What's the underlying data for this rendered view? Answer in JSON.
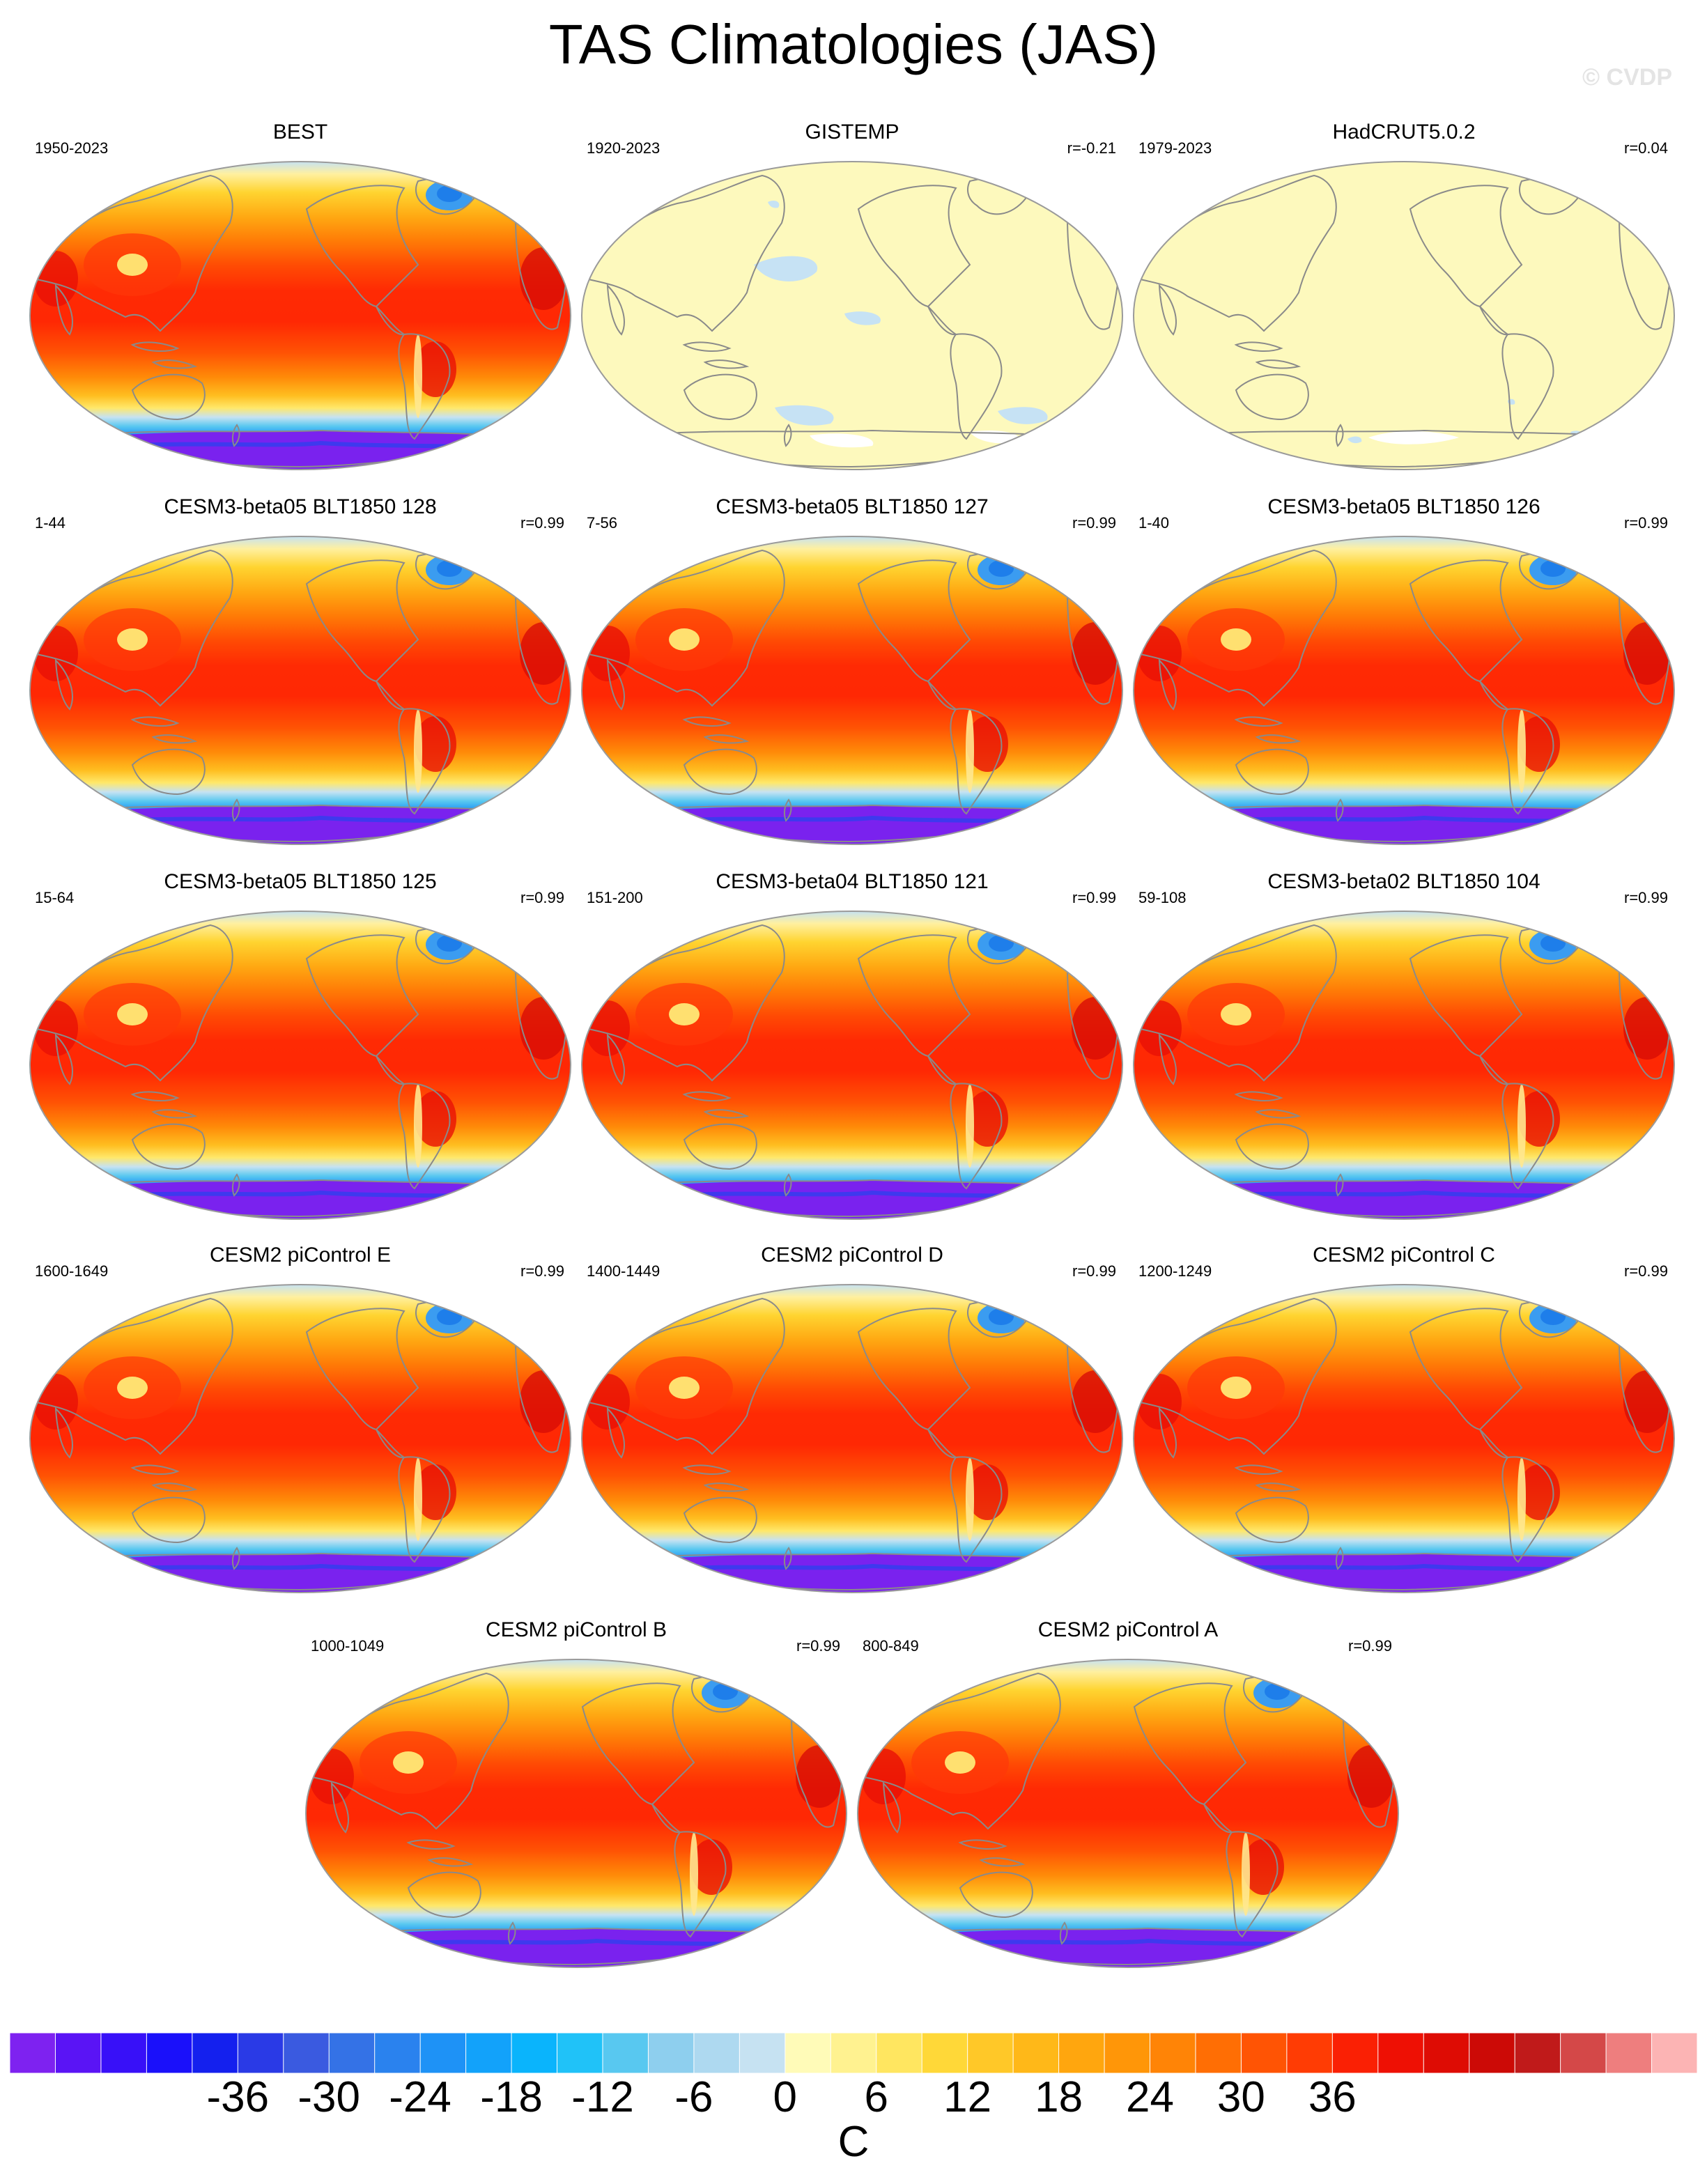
{
  "title": "TAS Climatologies (JAS)",
  "watermark": "© CVDP",
  "panels": [
    {
      "title": "BEST",
      "years": "1950-2023",
      "corr": "",
      "style": "full"
    },
    {
      "title": "GISTEMP",
      "years": "1920-2023",
      "corr": "r=-0.21",
      "style": "pale"
    },
    {
      "title": "HadCRUT5.0.2",
      "years": "1979-2023",
      "corr": "r=0.04",
      "style": "pale"
    },
    {
      "title": "CESM3-beta05 BLT1850 128",
      "years": "1-44",
      "corr": "r=0.99",
      "style": "full"
    },
    {
      "title": "CESM3-beta05 BLT1850 127",
      "years": "7-56",
      "corr": "r=0.99",
      "style": "full"
    },
    {
      "title": "CESM3-beta05 BLT1850 126",
      "years": "1-40",
      "corr": "r=0.99",
      "style": "full"
    },
    {
      "title": "CESM3-beta05 BLT1850 125",
      "years": "15-64",
      "corr": "r=0.99",
      "style": "full"
    },
    {
      "title": "CESM3-beta04 BLT1850 121",
      "years": "151-200",
      "corr": "r=0.99",
      "style": "full"
    },
    {
      "title": "CESM3-beta02 BLT1850 104",
      "years": "59-108",
      "corr": "r=0.99",
      "style": "full"
    },
    {
      "title": "CESM2 piControl E",
      "years": "1600-1649",
      "corr": "r=0.99",
      "style": "full"
    },
    {
      "title": "CESM2 piControl D",
      "years": "1400-1449",
      "corr": "r=0.99",
      "style": "full"
    },
    {
      "title": "CESM2 piControl C",
      "years": "1200-1249",
      "corr": "r=0.99",
      "style": "full"
    },
    {
      "title": "CESM2 piControl B",
      "years": "1000-1049",
      "corr": "r=0.99",
      "style": "full"
    },
    {
      "title": "CESM2 piControl A",
      "years": "800-849",
      "corr": "r=0.99",
      "style": "full"
    }
  ],
  "colorbar": {
    "units": "C",
    "labels": [
      "-36",
      "-30",
      "-24",
      "-18",
      "-12",
      "-6",
      "0",
      "6",
      "12",
      "18",
      "24",
      "30",
      "36"
    ],
    "colors": [
      "#7e22f0",
      "#5a14f5",
      "#3810f8",
      "#1a10fa",
      "#1420ee",
      "#2a3ae6",
      "#3a5ae0",
      "#3472e6",
      "#2a82ee",
      "#1e92f6",
      "#12a2fa",
      "#0ab4fc",
      "#20c2f8",
      "#58c8f0",
      "#8ecfee",
      "#aed9f0",
      "#c6e2f2",
      "#fffbb8",
      "#fff290",
      "#ffe660",
      "#ffd838",
      "#ffc828",
      "#ffb818",
      "#ffa60e",
      "#ff9608",
      "#ff8406",
      "#ff6e04",
      "#ff5404",
      "#ff3c04",
      "#fa2004",
      "#ee1004",
      "#de0c04",
      "#cc0a06",
      "#c01a1a",
      "#d44848",
      "#ee7e7e",
      "#fcb4b4"
    ]
  },
  "colors": {
    "land_outline": "#8a8a8a",
    "antarctic": "#7a22ee",
    "pale_fill": "#fdf9bd",
    "pale_blue": "#c6e2f4"
  }
}
